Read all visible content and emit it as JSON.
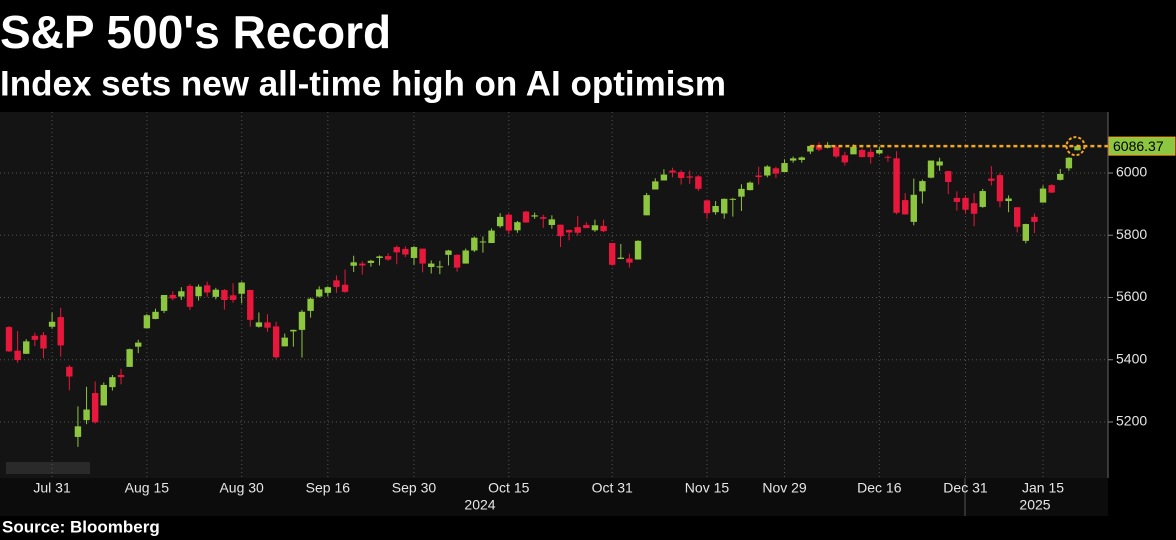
{
  "chart_data": {
    "type": "candlestick",
    "title": "S&P 500's Record",
    "subtitle": "Index sets new all-time high on AI optimism",
    "source": "Source: Bloomberg",
    "year_labels": [
      "2024",
      "2025"
    ],
    "categories": [
      null,
      null,
      null,
      null,
      null,
      "Jul 31",
      null,
      null,
      null,
      null,
      null,
      null,
      null,
      null,
      null,
      null,
      "Aug 15",
      null,
      null,
      null,
      null,
      null,
      null,
      null,
      null,
      null,
      null,
      "Aug 30",
      null,
      null,
      null,
      null,
      null,
      null,
      null,
      null,
      null,
      "Sep 16",
      null,
      null,
      null,
      null,
      null,
      null,
      null,
      null,
      null,
      "Sep 30",
      null,
      null,
      null,
      null,
      null,
      null,
      null,
      null,
      null,
      null,
      "Oct 15",
      null,
      null,
      null,
      null,
      null,
      null,
      null,
      null,
      null,
      null,
      null,
      "Oct 31",
      null,
      null,
      null,
      null,
      null,
      null,
      null,
      null,
      null,
      null,
      "Nov 15",
      null,
      null,
      null,
      null,
      null,
      null,
      null,
      null,
      "Nov 29",
      null,
      null,
      null,
      null,
      null,
      null,
      null,
      null,
      null,
      null,
      "Dec 16",
      null,
      null,
      null,
      null,
      null,
      null,
      null,
      null,
      null,
      "Dec 31",
      null,
      null,
      null,
      null,
      null,
      null,
      null,
      null,
      "Jan 15",
      null,
      null,
      null,
      null
    ],
    "open": [
      5505,
      5429,
      5419,
      5477,
      5479,
      5506,
      5537,
      5377,
      5152,
      5206,
      5293,
      5253,
      5312,
      5351,
      5377,
      5442,
      5501,
      5531,
      5557,
      5608,
      5603,
      5637,
      5604,
      5639,
      5602,
      5624,
      5607,
      5612,
      5624,
      5506,
      5520,
      5507,
      5443,
      5491,
      5496,
      5557,
      5603,
      5615,
      5655,
      5641,
      5702,
      5709,
      5711,
      5727,
      5733,
      5762,
      5756,
      5727,
      5757,
      5698,
      5698,
      5737,
      5737,
      5709,
      5751,
      5778,
      5775,
      5829,
      5866,
      5816,
      5876,
      5860,
      5858,
      5833,
      5834,
      5817,
      5826,
      5833,
      5816,
      5830,
      5775,
      5724,
      5725,
      5722,
      5864,
      5947,
      5976,
      6008,
      6003,
      5989,
      5989,
      5912,
      5874,
      5870,
      5915,
      5924,
      5945,
      5992,
      5992,
      6015,
      6003,
      6040,
      6042,
      6069,
      6089,
      6081,
      6083,
      6057,
      6060,
      6074,
      6068,
      6063,
      6052,
      6047,
      5913,
      5843,
      5941,
      5985,
      6024,
      6006,
      5920,
      5920,
      5903,
      5891,
      5982,
      5993,
      5910,
      5890,
      5782,
      5859,
      5905,
      5961,
      5978,
      6015,
      6073
    ],
    "high": [
      5508,
      5492,
      5466,
      5487,
      5489,
      5552,
      5567,
      5383,
      5250,
      5313,
      5330,
      5327,
      5351,
      5371,
      5436,
      5464,
      5547,
      5564,
      5608,
      5620,
      5633,
      5643,
      5642,
      5651,
      5631,
      5627,
      5646,
      5651,
      5625,
      5552,
      5546,
      5522,
      5484,
      5497,
      5560,
      5600,
      5636,
      5636,
      5671,
      5690,
      5734,
      5716,
      5721,
      5735,
      5742,
      5767,
      5764,
      5765,
      5757,
      5719,
      5718,
      5753,
      5739,
      5757,
      5796,
      5796,
      5822,
      5871,
      5870,
      5846,
      5878,
      5873,
      5866,
      5864,
      5834,
      5818,
      5862,
      5842,
      5850,
      5850,
      5775,
      5772,
      5741,
      5784,
      5936,
      5983,
      6012,
      6017,
      6009,
      6008,
      5993,
      5915,
      5910,
      5918,
      5920,
      5964,
      5973,
      6020,
      6025,
      6020,
      6044,
      6053,
      6053,
      6089,
      6099,
      6099,
      6088,
      6068,
      6092,
      6079,
      6079,
      6085,
      6057,
      6070,
      5935,
      5982,
      5979,
      6040,
      6049,
      6007,
      5941,
      5929,
      5935,
      5949,
      6022,
      6001,
      5928,
      5890,
      5837,
      5870,
      5960,
      5964,
      6013,
      6051,
      6091
    ],
    "low": [
      5425,
      5390,
      5419,
      5444,
      5405,
      5500,
      5410,
      5302,
      5120,
      5193,
      5195,
      5253,
      5301,
      5321,
      5377,
      5421,
      5501,
      5530,
      5550,
      5591,
      5592,
      5560,
      5590,
      5602,
      5594,
      5561,
      5583,
      5581,
      5506,
      5503,
      5490,
      5403,
      5443,
      5442,
      5407,
      5535,
      5600,
      5604,
      5615,
      5615,
      5682,
      5674,
      5699,
      5703,
      5718,
      5707,
      5730,
      5704,
      5681,
      5677,
      5675,
      5703,
      5683,
      5709,
      5746,
      5744,
      5775,
      5824,
      5804,
      5808,
      5840,
      5853,
      5824,
      5821,
      5762,
      5784,
      5799,
      5823,
      5811,
      5810,
      5702,
      5723,
      5696,
      5722,
      5864,
      5947,
      5976,
      5986,
      5963,
      5965,
      5942,
      5853,
      5866,
      5853,
      5860,
      5878,
      5944,
      5963,
      5986,
      5984,
      6003,
      6033,
      6033,
      6061,
      6070,
      6079,
      6048,
      6024,
      6060,
      6051,
      6030,
      6059,
      6036,
      5867,
      5866,
      5832,
      5902,
      5983,
      6007,
      5932,
      5879,
      5869,
      5829,
      5888,
      5960,
      5890,
      5874,
      5809,
      5774,
      5807,
      5905,
      5936,
      5976,
      6007,
      6073
    ],
    "close": [
      5427,
      5399,
      5459,
      5464,
      5436,
      5522,
      5446,
      5346,
      5186,
      5240,
      5199,
      5319,
      5344,
      5344,
      5434,
      5455,
      5543,
      5554,
      5608,
      5597,
      5620,
      5570,
      5635,
      5616,
      5625,
      5592,
      5592,
      5648,
      5528,
      5520,
      5503,
      5408,
      5471,
      5496,
      5554,
      5596,
      5626,
      5633,
      5634,
      5618,
      5713,
      5703,
      5718,
      5732,
      5722,
      5745,
      5738,
      5762,
      5709,
      5709,
      5700,
      5751,
      5696,
      5751,
      5792,
      5780,
      5815,
      5859,
      5815,
      5842,
      5841,
      5864,
      5853,
      5851,
      5797,
      5809,
      5808,
      5823,
      5832,
      5813,
      5705,
      5728,
      5712,
      5782,
      5929,
      5973,
      5995,
      6001,
      5984,
      5985,
      5949,
      5871,
      5894,
      5917,
      5917,
      5949,
      5969,
      5987,
      6021,
      5998,
      6032,
      6047,
      6050,
      6087,
      6075,
      6090,
      6053,
      6034,
      6084,
      6051,
      6051,
      6074,
      6050,
      5872,
      5867,
      5930,
      5974,
      6040,
      6037,
      5971,
      5907,
      5882,
      5869,
      5942,
      5975,
      5909,
      5918,
      5827,
      5836,
      5843,
      5950,
      5937,
      5997,
      6049,
      6086.37
    ],
    "up_color": "#8dc63f",
    "down_color": "#e8173c",
    "last_value": 6086.37,
    "last_value_color": "#f5a623",
    "ylim": [
      5020,
      6196
    ],
    "yticks": [
      5200,
      5400,
      5600,
      5800,
      6000
    ],
    "grid": true
  }
}
